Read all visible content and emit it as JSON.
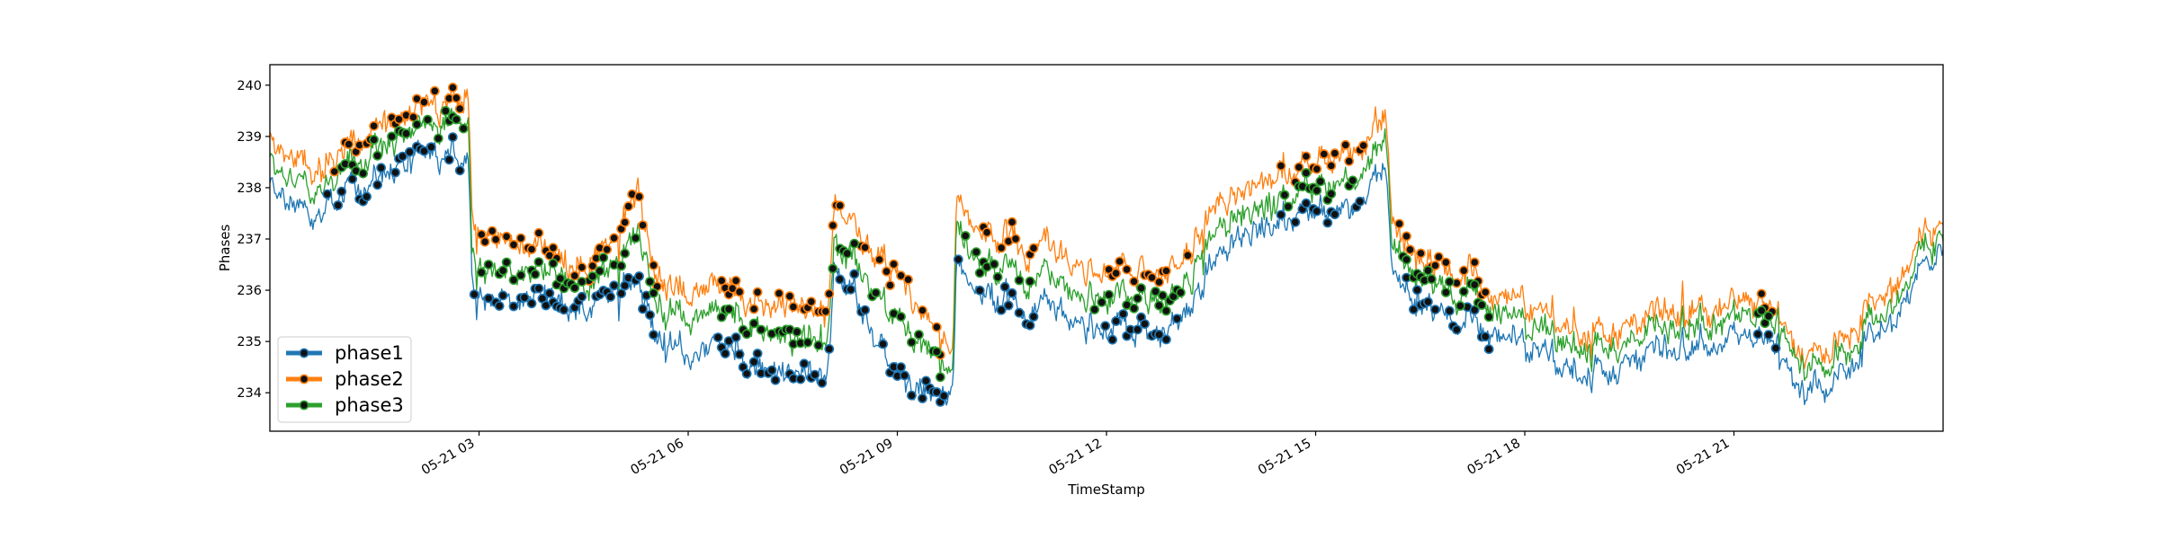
{
  "chart_data": {
    "type": "line",
    "title": "",
    "xlabel": "TimeStamp",
    "ylabel": "Phases",
    "x_range": [
      "2025-05-21 00:00",
      "2025-05-22 00:00"
    ],
    "x_ticks": [
      "05-21 03",
      "05-21 06",
      "05-21 09",
      "05-21 12",
      "05-21 15",
      "05-21 18",
      "05-21 21"
    ],
    "y_ticks": [
      234,
      235,
      236,
      237,
      238,
      239,
      240
    ],
    "ylim": [
      233.25,
      240.4
    ],
    "grid": false,
    "legend_position": "lower-left",
    "markers_note": "dots mark flagged samples on each phase",
    "series": [
      {
        "name": "phase1",
        "color": "#1f77b4",
        "x": [
          0,
          0.5,
          1,
          1.5,
          2,
          2.5,
          2.85,
          2.9,
          3.5,
          4,
          4.5,
          5,
          5.3,
          5.5,
          6,
          6.5,
          7,
          7.5,
          8,
          8.1,
          8.5,
          9,
          9.5,
          9.8,
          9.85,
          10,
          10.5,
          11,
          11.5,
          12,
          12.5,
          13,
          13.5,
          14,
          14.5,
          15,
          15.5,
          16,
          16.1,
          16.5,
          17,
          17.5,
          18,
          18.5,
          19,
          19.5,
          20,
          20.5,
          21,
          21.5,
          22,
          22.5,
          23,
          23.5,
          24
        ],
        "values": [
          238.0,
          237.4,
          237.8,
          238.2,
          238.4,
          238.6,
          238.7,
          236.0,
          235.8,
          235.9,
          235.9,
          235.9,
          236.0,
          235.1,
          234.8,
          234.7,
          234.4,
          234.3,
          234.1,
          236.5,
          235.5,
          234.2,
          233.9,
          234.2,
          236.5,
          236.2,
          235.8,
          235.6,
          235.4,
          235.3,
          235.2,
          235.4,
          236.5,
          237.1,
          237.4,
          237.6,
          237.5,
          238.4,
          236.2,
          235.8,
          235.5,
          235.2,
          234.8,
          234.5,
          234.4,
          234.5,
          234.8,
          235.0,
          235.1,
          234.9,
          233.9,
          234.5,
          235.1,
          235.9,
          236.8
        ]
      },
      {
        "name": "phase2",
        "color": "#ff7f0e",
        "x": [
          0,
          0.5,
          1,
          1.5,
          2,
          2.5,
          2.85,
          2.9,
          3.5,
          4,
          4.5,
          5,
          5.3,
          5.5,
          6,
          6.5,
          7,
          7.5,
          8,
          8.1,
          8.5,
          9,
          9.5,
          9.8,
          9.85,
          10,
          10.5,
          11,
          11.5,
          12,
          12.5,
          13,
          13.5,
          14,
          14.5,
          15,
          15.5,
          16,
          16.1,
          16.5,
          17,
          17.5,
          18,
          18.5,
          19,
          19.5,
          20,
          20.5,
          21,
          21.5,
          22,
          22.5,
          23,
          23.5,
          24
        ],
        "values": [
          238.9,
          238.3,
          238.6,
          239.2,
          239.3,
          239.6,
          239.9,
          237.3,
          236.9,
          236.8,
          236.7,
          236.9,
          237.8,
          236.2,
          236.0,
          235.8,
          235.7,
          235.6,
          235.3,
          237.7,
          236.9,
          236.2,
          235.2,
          235.1,
          237.7,
          237.5,
          237.0,
          236.8,
          236.5,
          236.4,
          236.3,
          236.6,
          237.5,
          238.0,
          238.3,
          238.5,
          238.6,
          239.4,
          237.2,
          236.7,
          236.4,
          236.0,
          235.6,
          235.3,
          235.2,
          235.2,
          235.5,
          235.7,
          235.8,
          235.6,
          234.6,
          235.2,
          235.7,
          236.5,
          237.4
        ]
      },
      {
        "name": "phase3",
        "color": "#2ca02c",
        "x": [
          0,
          0.5,
          1,
          1.5,
          2,
          2.5,
          2.85,
          2.9,
          3.5,
          4,
          4.5,
          5,
          5.3,
          5.5,
          6,
          6.5,
          7,
          7.5,
          8,
          8.1,
          8.5,
          9,
          9.5,
          9.8,
          9.85,
          10,
          10.5,
          11,
          11.5,
          12,
          12.5,
          13,
          13.5,
          14,
          14.5,
          15,
          15.5,
          16,
          16.1,
          16.5,
          17,
          17.5,
          18,
          18.5,
          19,
          19.5,
          20,
          20.5,
          21,
          21.5,
          22,
          22.5,
          23,
          23.5,
          24
        ],
        "values": [
          238.5,
          237.9,
          238.2,
          238.8,
          238.9,
          239.2,
          239.4,
          236.6,
          236.3,
          236.4,
          236.3,
          236.4,
          237.0,
          235.7,
          235.5,
          235.3,
          235.2,
          235.0,
          234.8,
          237.0,
          236.2,
          235.3,
          234.7,
          234.6,
          237.2,
          236.8,
          236.4,
          236.2,
          236.0,
          235.9,
          235.8,
          236.0,
          237.0,
          237.5,
          237.8,
          238.0,
          238.0,
          239.0,
          236.8,
          236.3,
          236.0,
          235.7,
          235.2,
          235.0,
          234.9,
          234.9,
          235.2,
          235.4,
          235.5,
          235.3,
          234.4,
          234.9,
          235.4,
          236.2,
          237.1
        ]
      }
    ],
    "flag_windows": [
      [
        0.8,
        2.8
      ],
      [
        2.9,
        5.6
      ],
      [
        6.4,
        8.0
      ],
      [
        8.0,
        9.7
      ],
      [
        9.85,
        11.0
      ],
      [
        11.8,
        13.2
      ],
      [
        14.5,
        15.7
      ],
      [
        16.2,
        17.5
      ],
      [
        21.3,
        21.6
      ]
    ]
  }
}
